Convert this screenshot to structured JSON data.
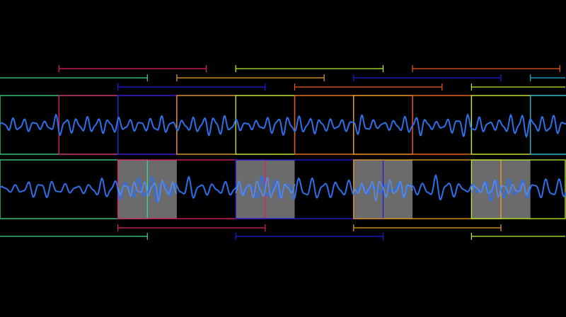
{
  "colors": {
    "background": "#000000",
    "waveform": "#2f6fe8",
    "waveform_overlay": "#5a8ff5",
    "overlap_fill": "#6b6b6b",
    "palette": [
      "#3ddc84",
      "#e0206a",
      "#1e1ee0",
      "#f0a020",
      "#b6f030",
      "#e85a20",
      "#20b0e0"
    ]
  },
  "top_strip": {
    "frame_count": 10,
    "window_frames": 2,
    "hop_frames": 1
  },
  "bottom_strip": {
    "window_frames": 4,
    "hop_frames": 2,
    "overlap_frames": [
      2,
      4,
      6,
      8
    ]
  }
}
